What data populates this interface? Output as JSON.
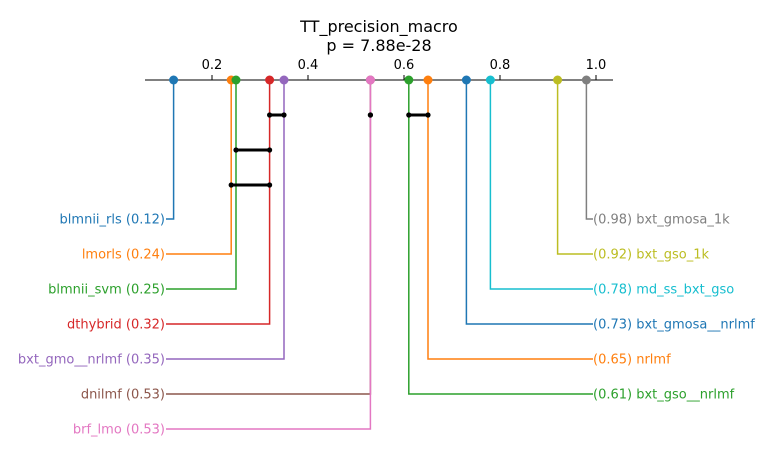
{
  "chart_data": {
    "type": "critical-difference",
    "title": "TT_precision_macro",
    "subtitle": "p = 7.88e-28",
    "axis": {
      "min": 0.1,
      "max": 1.0,
      "ticks": [
        0.2,
        0.4,
        0.6,
        0.8,
        1.0
      ],
      "tick_labels": [
        "0.2",
        "0.4",
        "0.6",
        "0.8",
        "1.0"
      ]
    },
    "left_methods": [
      {
        "name": "blmnii_rls",
        "value": 0.12,
        "label": "blmnii_rls (0.12)",
        "color": "#1f77b4"
      },
      {
        "name": "lmorls",
        "value": 0.24,
        "label": "lmorls (0.24)",
        "color": "#ff7f0e"
      },
      {
        "name": "blmnii_svm",
        "value": 0.25,
        "label": "blmnii_svm (0.25)",
        "color": "#2ca02c"
      },
      {
        "name": "dthybrid",
        "value": 0.32,
        "label": "dthybrid (0.32)",
        "color": "#d62728"
      },
      {
        "name": "bxt_gmo__nrlmf",
        "value": 0.35,
        "label": "bxt_gmo__nrlmf (0.35)",
        "color": "#9467bd"
      },
      {
        "name": "dnilmf",
        "value": 0.53,
        "label": "dnilmf (0.53)",
        "color": "#8c564b"
      },
      {
        "name": "brf_lmo",
        "value": 0.53,
        "label": "brf_lmo (0.53)",
        "color": "#e377c2"
      }
    ],
    "right_methods": [
      {
        "name": "bxt_gmosa_1k",
        "value": 0.98,
        "label": "(0.98) bxt_gmosa_1k",
        "color": "#7f7f7f"
      },
      {
        "name": "bxt_gso_1k",
        "value": 0.92,
        "label": "(0.92) bxt_gso_1k",
        "color": "#bcbd22"
      },
      {
        "name": "md_ss_bxt_gso",
        "value": 0.78,
        "label": "(0.78) md_ss_bxt_gso",
        "color": "#17becf"
      },
      {
        "name": "bxt_gmosa__nrlmf",
        "value": 0.73,
        "label": "(0.73) bxt_gmosa__nrlmf",
        "color": "#1f77b4"
      },
      {
        "name": "nrlmf",
        "value": 0.65,
        "label": "(0.65) nrlmf",
        "color": "#ff7f0e"
      },
      {
        "name": "bxt_gso__nrlmf",
        "value": 0.61,
        "label": "(0.61) bxt_gso__nrlmf",
        "color": "#2ca02c"
      }
    ],
    "cliques": [
      {
        "from": 0.32,
        "to": 0.35
      },
      {
        "from": 0.53,
        "to": 0.53
      },
      {
        "from": 0.61,
        "to": 0.65
      },
      {
        "from": 0.25,
        "to": 0.32
      },
      {
        "from": 0.24,
        "to": 0.32
      }
    ]
  }
}
